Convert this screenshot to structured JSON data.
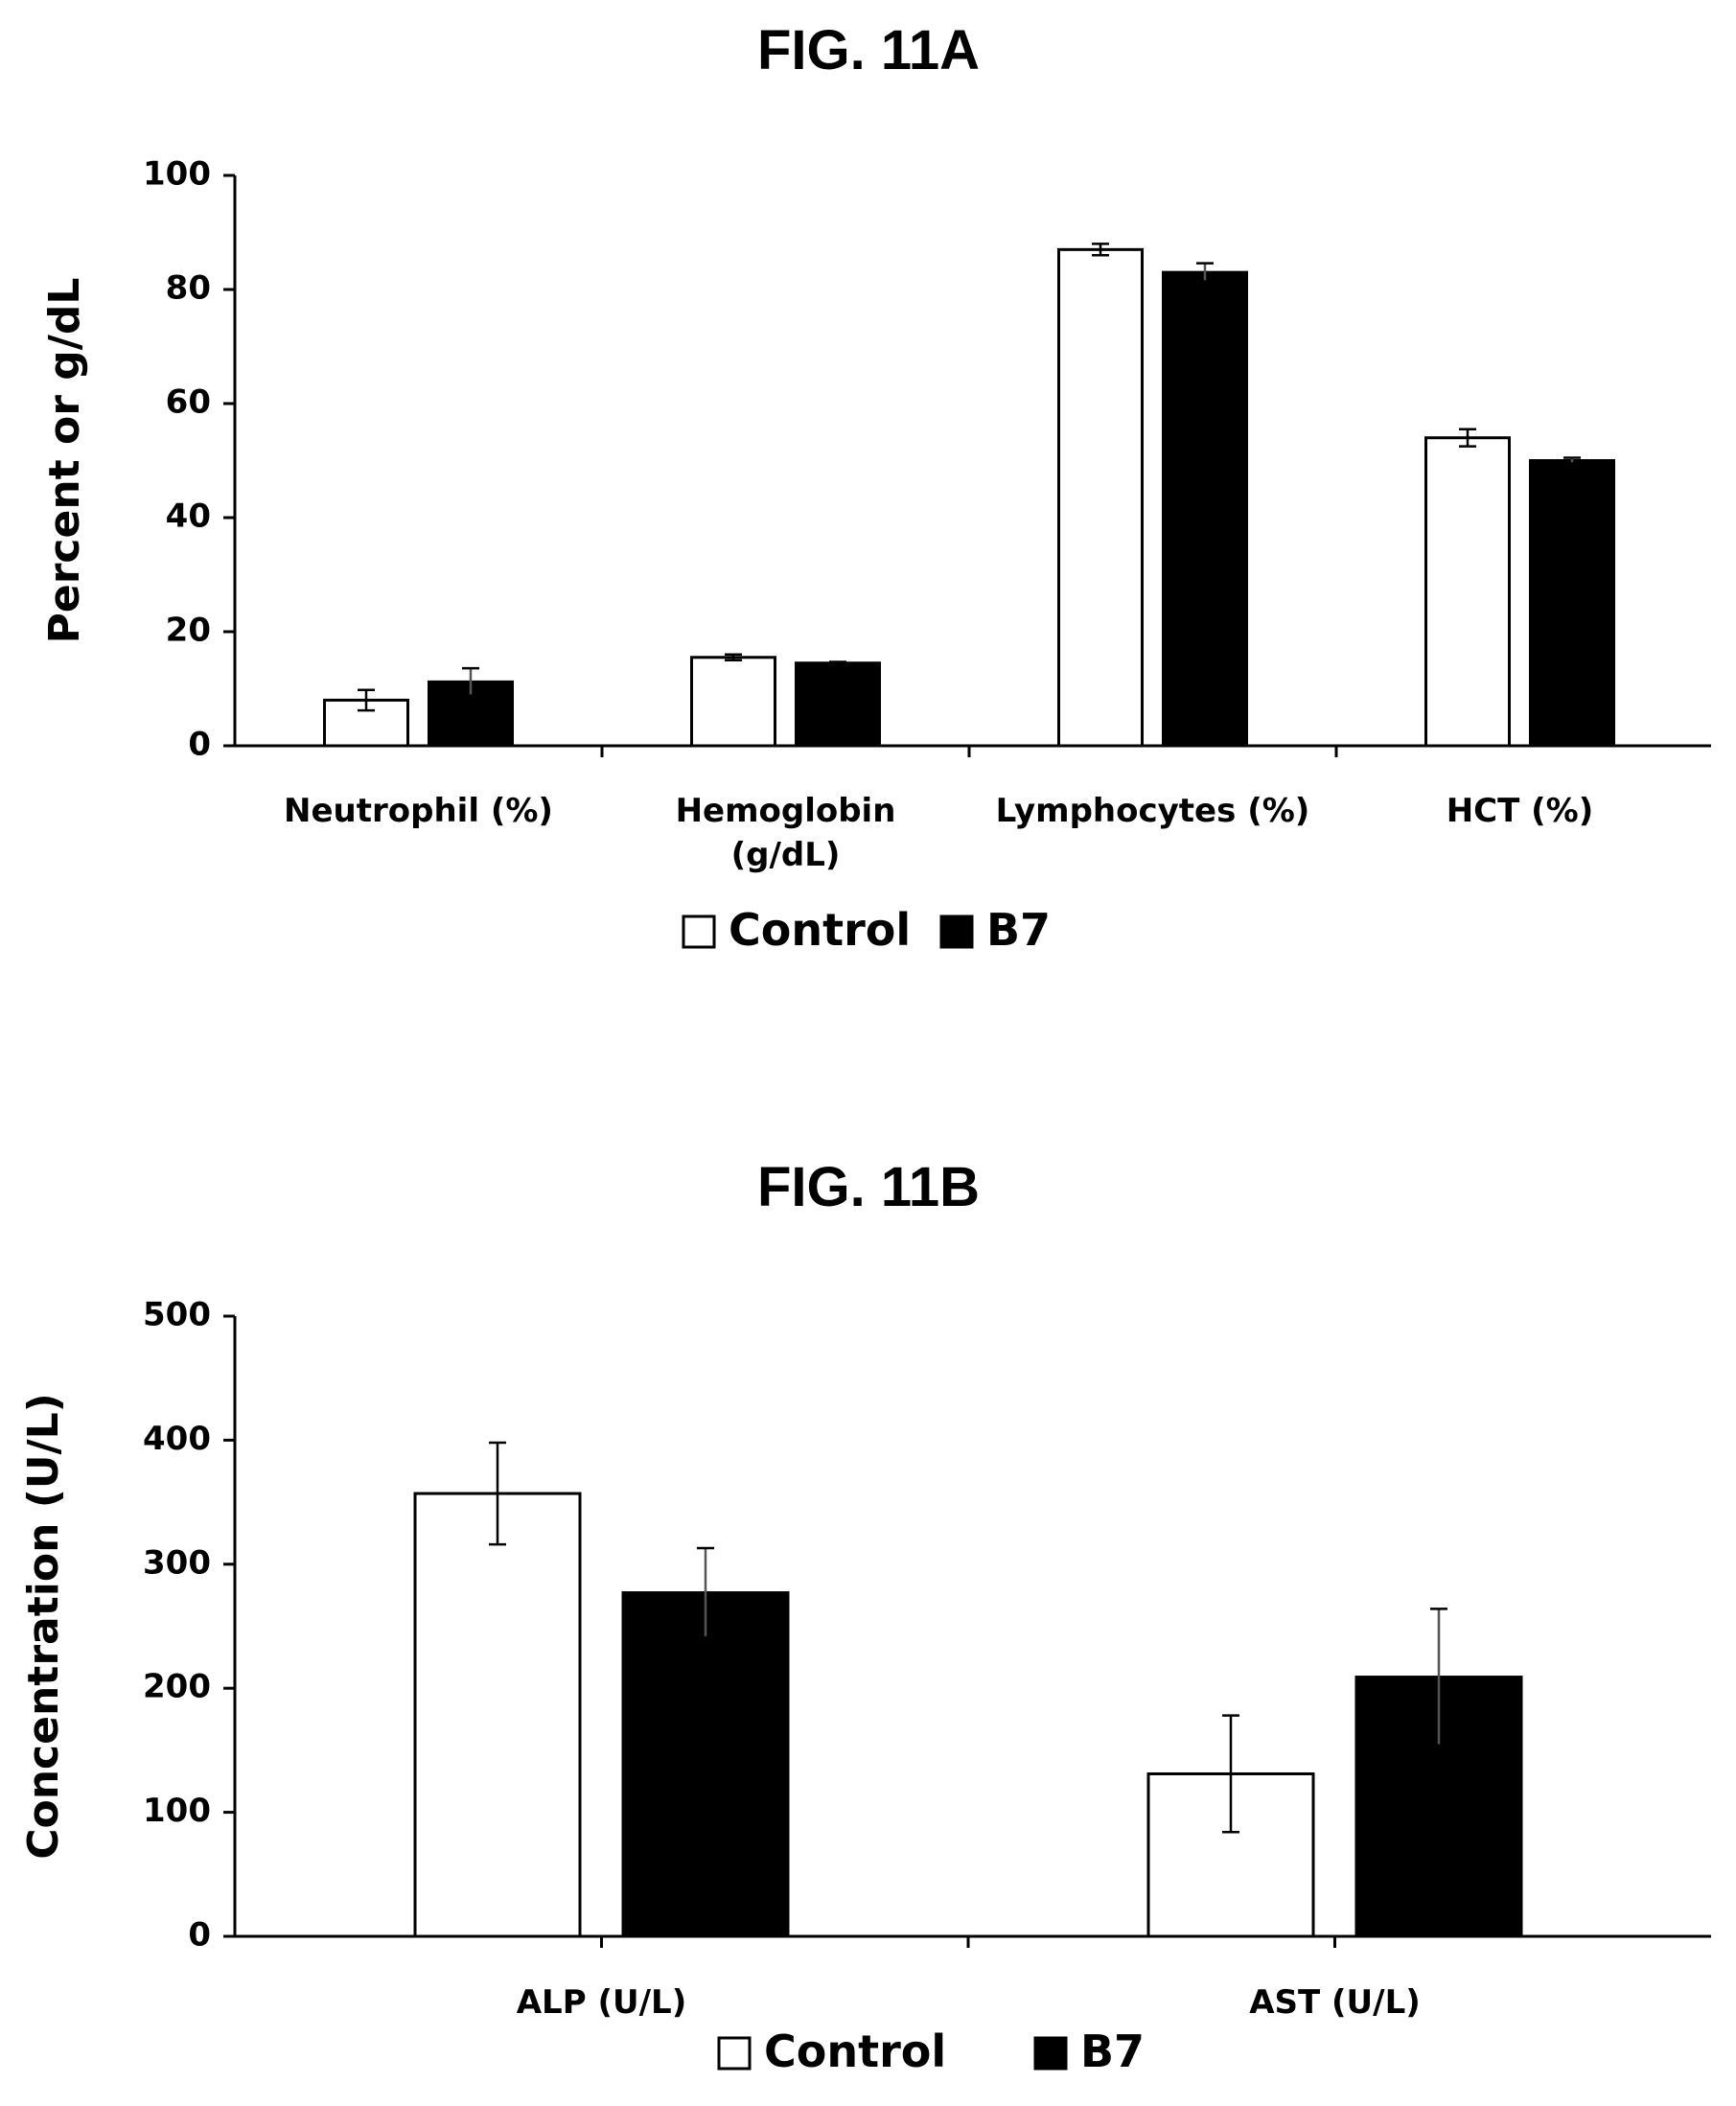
{
  "chart_data": [
    {
      "type": "bar",
      "title": "FIG. 11A",
      "ylabel": "Percent or g/dL",
      "xlabel": "",
      "ylim": [
        0,
        100
      ],
      "yticks": [
        "0",
        "20",
        "40",
        "60",
        "80",
        "100"
      ],
      "categories": [
        [
          "Neutrophil (%)"
        ],
        [
          "Hemoglobin",
          "(g/dL)"
        ],
        [
          "Lymphocytes (%)"
        ],
        [
          "HCT (%)"
        ]
      ],
      "series": [
        {
          "name": "Control",
          "color": "#ffffff",
          "values": [
            8,
            15.5,
            87,
            54
          ],
          "errors": [
            1.8,
            0.5,
            1,
            1.5
          ]
        },
        {
          "name": "B7",
          "color": "#000000",
          "values": [
            11.2,
            14.5,
            83,
            50
          ],
          "errors": [
            2.4,
            0.2,
            1.6,
            0.5
          ]
        }
      ],
      "legend": "bottom-center",
      "grid": false
    },
    {
      "type": "bar",
      "title": "FIG. 11B",
      "ylabel": "Concentration (U/L)",
      "xlabel": "",
      "ylim": [
        0,
        500
      ],
      "yticks": [
        "0",
        "100",
        "200",
        "300",
        "400",
        "500"
      ],
      "categories": [
        [
          "ALP (U/L)"
        ],
        [
          "AST (U/L)"
        ]
      ],
      "series": [
        {
          "name": "Control",
          "color": "#ffffff",
          "values": [
            357,
            131
          ],
          "errors": [
            41,
            47
          ]
        },
        {
          "name": "B7",
          "color": "#000000",
          "values": [
            277,
            209
          ],
          "errors": [
            36,
            55
          ]
        }
      ],
      "legend": "bottom-center",
      "grid": false
    }
  ]
}
